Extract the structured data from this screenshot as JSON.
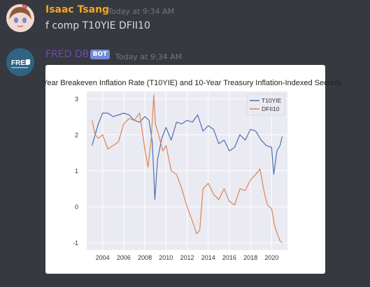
{
  "message1": {
    "author": "Isaac Tsang",
    "author_color": "#faa61a",
    "timestamp": "Today at 9:34 AM",
    "text": "f comp T10YIE DFII10"
  },
  "message2": {
    "author": "FRED DB",
    "author_color": "#6f4bb0",
    "badge": "BOT",
    "timestamp": "Today at 9:34 AM",
    "avatar_text": "FRED"
  },
  "chart_data": {
    "type": "line",
    "title": "Year Breakeven Inflation Rate (T10YIE) and 10-Year Treasury Inflation-Indexed Security",
    "x_ticks": [
      "2004",
      "2006",
      "2008",
      "2010",
      "2012",
      "2014",
      "2016",
      "2018",
      "2020"
    ],
    "y_ticks": [
      "3",
      "2",
      "1",
      "0",
      "-1"
    ],
    "xlim": [
      2002.5,
      2021.5
    ],
    "ylim": [
      -1.2,
      3.2
    ],
    "grid": true,
    "legend_position": "top-right",
    "series": [
      {
        "name": "T10YIE",
        "color": "#4c72b0",
        "x": [
          2003.0,
          2003.3,
          2003.6,
          2004.0,
          2004.5,
          2005.0,
          2005.5,
          2006.0,
          2006.5,
          2007.0,
          2007.5,
          2008.0,
          2008.4,
          2008.7,
          2008.85,
          2008.95,
          2009.2,
          2009.6,
          2010.0,
          2010.5,
          2011.0,
          2011.5,
          2012.0,
          2012.5,
          2013.0,
          2013.5,
          2014.0,
          2014.5,
          2015.0,
          2015.5,
          2016.0,
          2016.5,
          2017.0,
          2017.5,
          2018.0,
          2018.5,
          2019.0,
          2019.5,
          2020.0,
          2020.2,
          2020.5,
          2020.8,
          2021.0
        ],
        "values": [
          1.7,
          2.0,
          2.3,
          2.6,
          2.6,
          2.5,
          2.55,
          2.6,
          2.55,
          2.4,
          2.35,
          2.5,
          2.4,
          1.8,
          0.9,
          0.2,
          1.3,
          1.9,
          2.2,
          1.85,
          2.35,
          2.3,
          2.4,
          2.35,
          2.55,
          2.1,
          2.25,
          2.15,
          1.75,
          1.85,
          1.55,
          1.65,
          2.0,
          1.85,
          2.15,
          2.1,
          1.85,
          1.7,
          1.65,
          0.9,
          1.55,
          1.7,
          1.95
        ]
      },
      {
        "name": "DFII10",
        "color": "#dd8452",
        "x": [
          2003.0,
          2003.3,
          2003.6,
          2004.0,
          2004.5,
          2005.0,
          2005.5,
          2006.0,
          2006.5,
          2007.0,
          2007.5,
          2008.0,
          2008.3,
          2008.6,
          2008.85,
          2009.0,
          2009.3,
          2009.7,
          2010.0,
          2010.5,
          2011.0,
          2011.5,
          2012.0,
          2012.5,
          2012.9,
          2013.2,
          2013.5,
          2014.0,
          2014.5,
          2015.0,
          2015.5,
          2016.0,
          2016.5,
          2017.0,
          2017.5,
          2018.0,
          2018.5,
          2018.9,
          2019.3,
          2019.6,
          2020.0,
          2020.3,
          2020.6,
          2020.8,
          2021.0
        ],
        "values": [
          2.4,
          2.0,
          1.9,
          2.0,
          1.6,
          1.7,
          1.8,
          2.3,
          2.45,
          2.4,
          2.6,
          1.6,
          1.1,
          1.85,
          3.1,
          2.3,
          2.0,
          1.55,
          1.7,
          1.0,
          0.9,
          0.5,
          0.0,
          -0.4,
          -0.75,
          -0.65,
          0.5,
          0.65,
          0.35,
          0.2,
          0.5,
          0.15,
          0.05,
          0.5,
          0.45,
          0.75,
          0.9,
          1.05,
          0.4,
          0.05,
          -0.05,
          -0.55,
          -0.8,
          -0.95,
          -1.0
        ]
      }
    ]
  }
}
